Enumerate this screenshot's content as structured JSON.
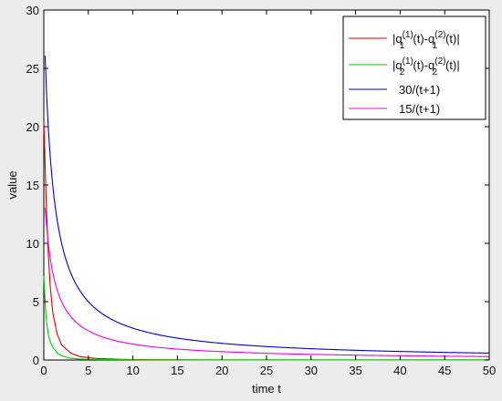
{
  "chart_data": {
    "type": "line",
    "title": "",
    "xlabel": "time t",
    "ylabel": "value",
    "xlim": [
      0,
      50
    ],
    "ylim": [
      0,
      30
    ],
    "xticks": [
      0,
      5,
      10,
      15,
      20,
      25,
      30,
      35,
      40,
      45,
      50
    ],
    "yticks": [
      0,
      5,
      10,
      15,
      20,
      25,
      30
    ],
    "grid": false,
    "legend_position": "top-right",
    "series": [
      {
        "name": "|q1(1)(t)-q1(2)(t)|",
        "legend": {
          "pre": "|q",
          "sub1": "1",
          "sup1": "(1)",
          "mid": "(t)-q",
          "sub2": "1",
          "sup2": "(2)",
          "post": "(t)|"
        },
        "color": "#e00000",
        "points": [
          [
            0,
            20.5
          ],
          [
            0.1,
            18
          ],
          [
            0.2,
            15.3
          ],
          [
            0.3,
            12.8
          ],
          [
            0.5,
            9.2
          ],
          [
            0.7,
            6.5
          ],
          [
            1,
            4.1
          ],
          [
            1.5,
            2.2
          ],
          [
            2,
            1.3
          ],
          [
            3,
            0.6
          ],
          [
            4,
            0.3
          ],
          [
            5,
            0.2
          ],
          [
            6,
            0.12
          ],
          [
            8,
            0.07
          ],
          [
            10,
            0.04
          ],
          [
            15,
            0.02
          ],
          [
            20,
            0.01
          ],
          [
            30,
            0.005
          ],
          [
            40,
            0.003
          ],
          [
            50,
            0.002
          ]
        ]
      },
      {
        "name": "|q2(1)(t)-q2(2)(t)|",
        "legend": {
          "pre": "|q",
          "sub1": "2",
          "sup1": "(1)",
          "mid": "(t)-q",
          "sub2": "2",
          "sup2": "(2)",
          "post": "(t)|"
        },
        "color": "#00cc00",
        "points": [
          [
            0,
            7.2
          ],
          [
            0.1,
            5.6
          ],
          [
            0.2,
            4.3
          ],
          [
            0.3,
            3.3
          ],
          [
            0.5,
            2.2
          ],
          [
            0.7,
            1.6
          ],
          [
            1,
            1.1
          ],
          [
            1.5,
            0.6
          ],
          [
            2,
            0.35
          ],
          [
            3,
            0.15
          ],
          [
            4,
            0.08
          ],
          [
            6,
            0.04
          ],
          [
            10,
            0.02
          ],
          [
            20,
            0.008
          ],
          [
            30,
            0.004
          ],
          [
            50,
            0.002
          ]
        ]
      },
      {
        "name": "30/(t+1)",
        "legend": {
          "text": "30/(t+1)"
        },
        "color": "#0000cc",
        "formula": "30/(t+1)",
        "start": 0.15,
        "end": 50
      },
      {
        "name": "15/(t+1)",
        "legend": {
          "text": "15/(t+1)"
        },
        "color": "#ee00ee",
        "formula": "15/(t+1)",
        "start": 0.15,
        "end": 50
      }
    ]
  }
}
